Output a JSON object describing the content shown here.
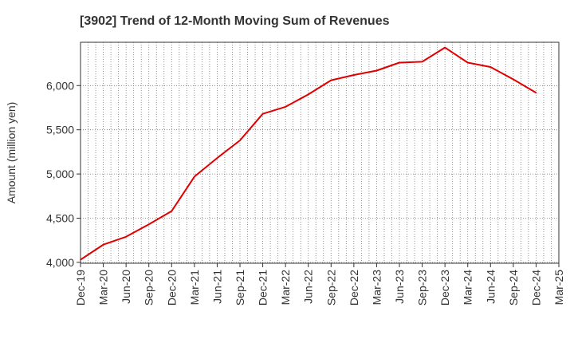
{
  "chart_data": {
    "type": "line",
    "title": "[3902]  Trend of 12-Month Moving Sum of Revenues",
    "xlabel": "",
    "ylabel": "Amount (million yen)",
    "ylim": [
      3990,
      6490
    ],
    "yticks": [
      4000,
      4500,
      5000,
      5500,
      6000
    ],
    "ytick_labels": [
      "4,000",
      "4,500",
      "5,000",
      "5,500",
      "6,000"
    ],
    "xtick_labels": [
      "Dec-19",
      "Mar-20",
      "Jun-20",
      "Sep-20",
      "Dec-20",
      "Mar-21",
      "Jun-21",
      "Sep-21",
      "Dec-21",
      "Mar-22",
      "Jun-22",
      "Sep-22",
      "Dec-22",
      "Mar-23",
      "Jun-23",
      "Sep-23",
      "Dec-23",
      "Mar-24",
      "Jun-24",
      "Sep-24",
      "Dec-24",
      "Mar-25"
    ],
    "grid": true,
    "legend": "none",
    "series": [
      {
        "color": "#e00000",
        "x": [
          "Dec-19",
          "Mar-20",
          "Jun-20",
          "Sep-20",
          "Dec-20",
          "Mar-21",
          "Jun-21",
          "Sep-21",
          "Dec-21",
          "Mar-22",
          "Jun-22",
          "Sep-22",
          "Dec-22",
          "Mar-23",
          "Jun-23",
          "Sep-23",
          "Dec-23",
          "Mar-24",
          "Jun-24",
          "Sep-24",
          "Dec-24"
        ],
        "values": [
          4030,
          4200,
          4290,
          4430,
          4580,
          4970,
          5180,
          5380,
          5680,
          5760,
          5900,
          6060,
          6120,
          6170,
          6260,
          6270,
          6430,
          6260,
          6210,
          6070,
          5920
        ]
      }
    ]
  }
}
